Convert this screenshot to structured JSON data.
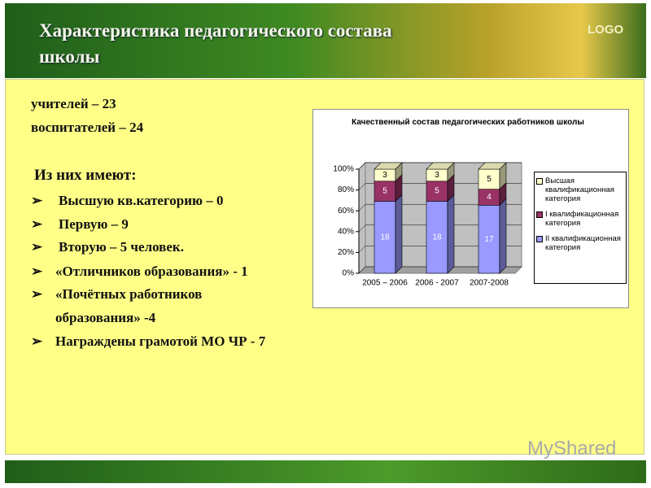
{
  "header": {
    "title": "Характеристика педагогического состава школы",
    "logo": "LOGO"
  },
  "body": {
    "counts": [
      "учителей – 23",
      "воспитателей – 24"
    ],
    "subheading": "Из них имеют:",
    "bullets": [
      "Высшую кв.категорию – 0",
      "Первую – 9",
      "Вторую – 5 человек.",
      "«Отличников образования» - 1",
      "«Почётных работников образования» -4",
      "Награждены грамотой  МО ЧР - 7"
    ]
  },
  "chart_data": {
    "type": "bar",
    "stacking": "percent",
    "title": "Качественный состав педагогических работников школы",
    "categories": [
      "2005 – 2006",
      "2006 - 2007",
      "2007-2008"
    ],
    "series": [
      {
        "name": "II квалификационная категория",
        "color": "#9999ff",
        "values": [
          18,
          18,
          17
        ]
      },
      {
        "name": "I квалификационная категория",
        "color": "#993366",
        "values": [
          5,
          5,
          4
        ]
      },
      {
        "name": "Высшая квалификационная категория",
        "color": "#ffffcc",
        "values": [
          3,
          3,
          5
        ]
      }
    ],
    "ylim": [
      0,
      100
    ],
    "yticks": [
      {
        "value": 0,
        "label": "0%"
      },
      {
        "value": 20,
        "label": "20%"
      },
      {
        "value": 40,
        "label": "40%"
      },
      {
        "value": 60,
        "label": "60%"
      },
      {
        "value": 80,
        "label": "80%"
      },
      {
        "value": 100,
        "label": "100%"
      }
    ],
    "grid": true,
    "legend": "right"
  },
  "footer": {
    "watermark": "MyShared"
  }
}
